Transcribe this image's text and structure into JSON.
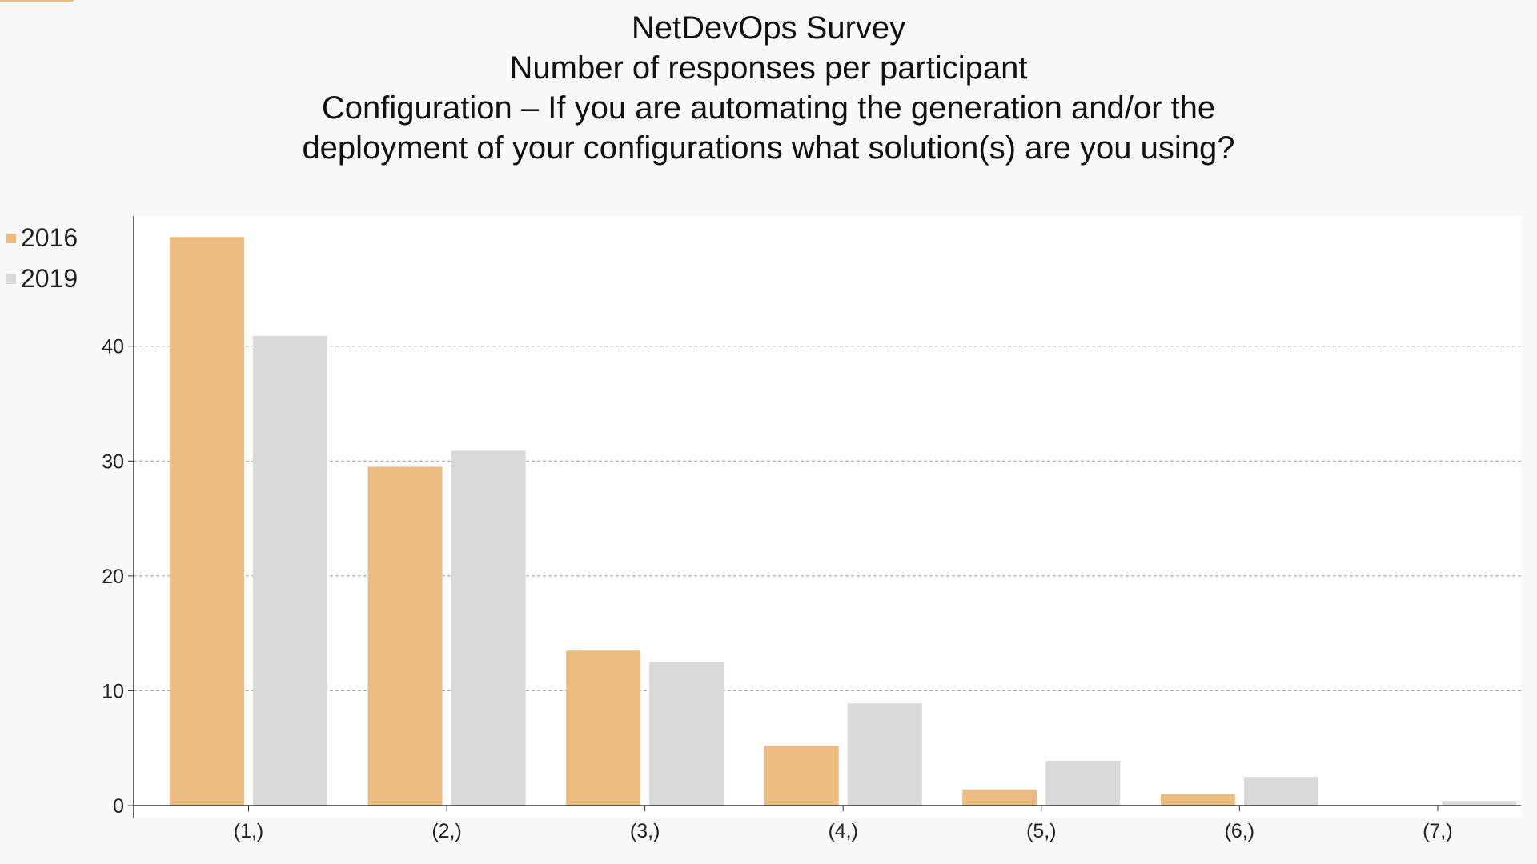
{
  "title_lines": [
    "NetDevOps Survey",
    "Number of responses per participant",
    "Configuration – If you are automating the generation and/or the",
    "deployment of your configurations what solution(s) are you using?"
  ],
  "colors": {
    "2016": "#ebbb7f",
    "2019": "#d9d9d9",
    "gridline": "#999999",
    "axis": "#333333"
  },
  "chart_data": {
    "type": "bar",
    "title": "NetDevOps Survey\nNumber of responses per participant\nConfiguration – If you are automating the generation and/or the\ndeployment of your configurations what solution(s) are you using?",
    "xlabel": "",
    "ylabel": "",
    "categories": [
      "(1,)",
      "(2,)",
      "(3,)",
      "(4,)",
      "(5,)",
      "(6,)",
      "(7,)"
    ],
    "series": [
      {
        "name": "2016",
        "values": [
          49.5,
          29.5,
          13.5,
          5.2,
          1.4,
          1.0,
          0.0
        ]
      },
      {
        "name": "2019",
        "values": [
          40.9,
          30.9,
          12.5,
          8.9,
          3.9,
          2.5,
          0.4
        ]
      }
    ],
    "ylim": [
      0,
      50.5
    ],
    "yticks": [
      0,
      10,
      20,
      30,
      40
    ],
    "grid": "y-dashed",
    "legend_position": "top-left"
  }
}
